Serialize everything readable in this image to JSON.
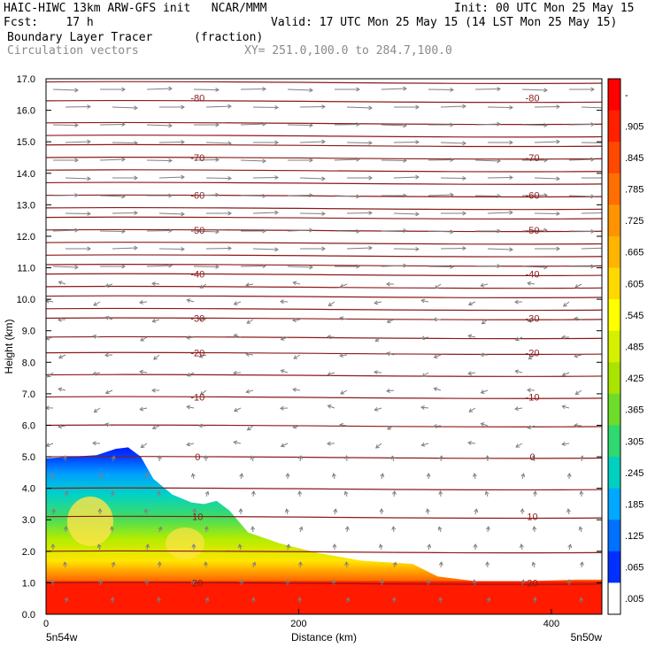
{
  "header": {
    "title_left": "HAIC-HIWC 13km ARW-GFS init   NCAR/MMM",
    "init_text": "Init: 00 UTC Mon 25 May 15",
    "fcst_text": "Fcst:    17 h",
    "valid_text": "Valid: 17 UTC Mon 25 May 15 (14 LST Mon 25 May 15)",
    "field_name": "Boundary Layer Tracer",
    "field_units": "(fraction)",
    "vector_label": "Circulation vectors",
    "cross_section": "XY= 251.0,100.0 to 284.7,100.0"
  },
  "colors": {
    "contour_line": "#8b1a1a",
    "vector": "#7f7f7f",
    "axis": "#000000"
  },
  "chart_data": {
    "type": "heatmap",
    "xlabel": "Distance (km)",
    "ylabel": "Height (km)",
    "xlim": [
      0,
      440
    ],
    "ylim": [
      0,
      17
    ],
    "x_ticks": [
      0,
      200,
      400
    ],
    "x_tick_labels": [
      "0",
      "200",
      "400"
    ],
    "y_ticks": [
      0,
      1,
      2,
      3,
      4,
      5,
      6,
      7,
      8,
      9,
      10,
      11,
      12,
      13,
      14,
      15,
      16,
      17
    ],
    "y_tick_labels": [
      "0.0",
      "1.0",
      "2.0",
      "3.0",
      "4.0",
      "5.0",
      "6.0",
      "7.0",
      "8.0",
      "9.0",
      "10.0",
      "11.0",
      "12.0",
      "13.0",
      "14.0",
      "15.0",
      "16.0",
      "17.0"
    ],
    "x_end_labels": [
      "5n54w",
      "5n50w"
    ],
    "colorbar": {
      "tick_labels": [
        "-",
        ".905",
        ".845",
        ".785",
        ".725",
        ".665",
        ".605",
        ".545",
        ".485",
        ".425",
        ".365",
        ".305",
        ".245",
        ".185",
        ".125",
        ".065",
        ".005"
      ],
      "colors": [
        "#ff0000",
        "#ff2000",
        "#ff4800",
        "#ff6e00",
        "#ff9400",
        "#ffb400",
        "#ffd800",
        "#ffff00",
        "#d4f000",
        "#a8e400",
        "#6edc2a",
        "#30d870",
        "#00d0c0",
        "#00a8ff",
        "#0070ff",
        "#0030ff",
        "#ffffff"
      ]
    },
    "isotherm_labels": [
      {
        "value": -80,
        "label": "-80",
        "height_km": 16.4
      },
      {
        "value": -70,
        "label": "-70",
        "height_km": 14.5
      },
      {
        "value": -60,
        "label": "-60",
        "height_km": 13.3
      },
      {
        "value": -50,
        "label": "-50",
        "height_km": 12.2
      },
      {
        "value": -40,
        "label": "-40",
        "height_km": 10.8
      },
      {
        "value": -30,
        "label": "-30",
        "height_km": 9.4
      },
      {
        "value": -20,
        "label": "-20",
        "height_km": 8.3
      },
      {
        "value": -10,
        "label": "-10",
        "height_km": 6.9
      },
      {
        "value": 0,
        "label": "0",
        "height_km": 5.0
      },
      {
        "value": 10,
        "label": "10",
        "height_km": 3.1
      },
      {
        "value": 20,
        "label": "20",
        "height_km": 1.0
      }
    ],
    "tracer_top_profile": {
      "distance_km": [
        0,
        20,
        40,
        55,
        65,
        75,
        85,
        100,
        115,
        125,
        135,
        145,
        160,
        185,
        215,
        250,
        290,
        310,
        340,
        380,
        420,
        440
      ],
      "top_height_km": [
        4.95,
        5.0,
        5.05,
        5.25,
        5.3,
        5.0,
        4.3,
        3.8,
        3.55,
        3.5,
        3.6,
        3.3,
        2.6,
        2.25,
        1.95,
        1.7,
        1.6,
        1.2,
        1.05,
        1.05,
        1.1,
        1.1
      ]
    }
  }
}
